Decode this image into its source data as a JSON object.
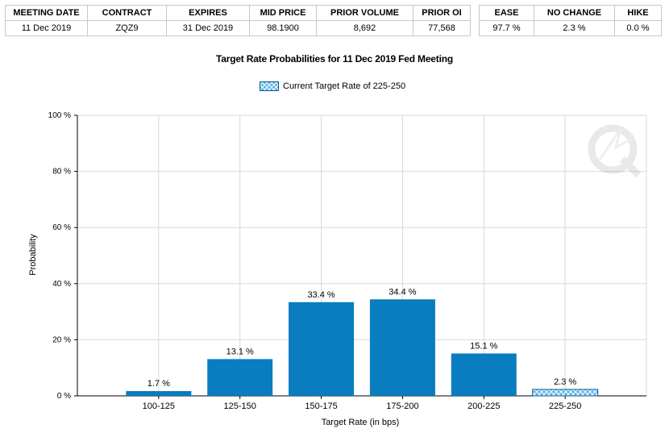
{
  "meeting_table": {
    "headers": [
      "MEETING DATE",
      "CONTRACT",
      "EXPIRES",
      "MID PRICE",
      "PRIOR VOLUME",
      "PRIOR OI"
    ],
    "row": [
      "11 Dec 2019",
      "ZQZ9",
      "31 Dec 2019",
      "98.1900",
      "8,692",
      "77,568"
    ]
  },
  "probability_table": {
    "headers": [
      "EASE",
      "NO CHANGE",
      "HIKE"
    ],
    "row": [
      "97.7 %",
      "2.3 %",
      "0.0 %"
    ]
  },
  "chart_data": {
    "type": "bar",
    "title": "Target Rate Probabilities for 11 Dec 2019 Fed Meeting",
    "legend": "Current Target Rate of 225-250",
    "legend_placement": "top-center",
    "xlabel": "Target Rate (in bps)",
    "ylabel": "Probability",
    "categories": [
      "100-125",
      "125-150",
      "150-175",
      "175-200",
      "200-225",
      "225-250"
    ],
    "values": [
      1.7,
      13.1,
      33.4,
      34.4,
      15.1,
      2.3
    ],
    "value_labels": [
      "1.7 %",
      "13.1 %",
      "33.4 %",
      "34.4 %",
      "15.1 %",
      "2.3 %"
    ],
    "current_category": "225-250",
    "ylim": [
      0,
      100
    ],
    "yticks": [
      0,
      20,
      40,
      60,
      80,
      100
    ],
    "ytick_labels": [
      "0 %",
      "20 %",
      "40 %",
      "60 %",
      "80 %",
      "100 %"
    ],
    "grid": true,
    "bar_color": "#0a7cc0",
    "hatch_color": "#5fb5e8"
  }
}
